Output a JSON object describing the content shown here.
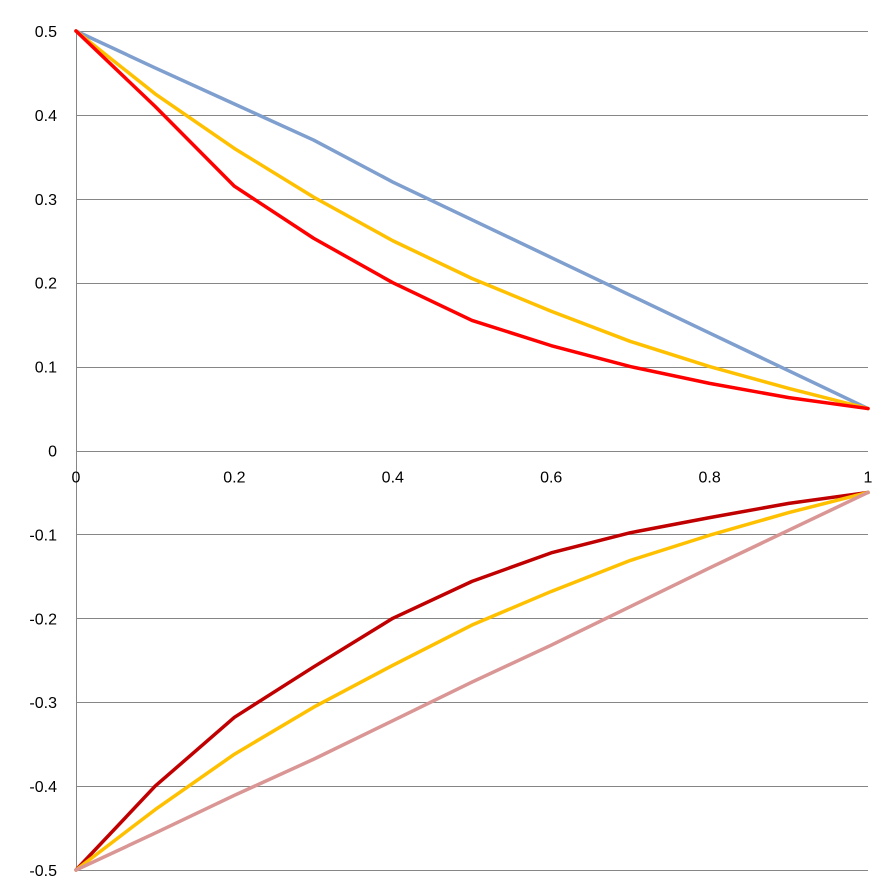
{
  "chart_data": {
    "type": "line",
    "title": "",
    "xlabel": "",
    "ylabel": "",
    "xlim": [
      0,
      1
    ],
    "ylim": [
      -0.5,
      0.5
    ],
    "grid": true,
    "legend": "none",
    "x_ticks": [
      0,
      0.2,
      0.4,
      0.6,
      0.8,
      1
    ],
    "x_tick_labels": [
      "0",
      "0.2",
      "0.4",
      "0.6",
      "0.8",
      "1"
    ],
    "y_ticks": [
      0.5,
      0.4,
      0.3,
      0.2,
      0.1,
      0,
      -0.1,
      -0.2,
      -0.3,
      -0.4,
      -0.5
    ],
    "y_tick_labels": [
      "0.5",
      "0.4",
      "0.3",
      "0.2",
      "0.1",
      "0",
      "-0.1",
      "-0.2",
      "-0.3",
      "-0.4",
      "-0.5"
    ],
    "x": [
      0,
      0.1,
      0.2,
      0.3,
      0.4,
      0.5,
      0.6,
      0.7,
      0.8,
      0.9,
      1.0
    ],
    "series": [
      {
        "color": "#7f9fcf",
        "values": [
          0.5,
          0.456,
          0.413,
          0.37,
          0.32,
          0.275,
          0.23,
          0.185,
          0.14,
          0.095,
          0.05
        ]
      },
      {
        "color": "#ffc000",
        "values": [
          0.5,
          0.425,
          0.36,
          0.302,
          0.25,
          0.205,
          0.166,
          0.13,
          0.1,
          0.074,
          0.05
        ]
      },
      {
        "color": "#ff0000",
        "values": [
          0.5,
          0.41,
          0.315,
          0.253,
          0.2,
          0.155,
          0.125,
          0.1,
          0.08,
          0.063,
          0.05
        ]
      },
      {
        "color": "#c00000",
        "values": [
          -0.5,
          -0.4,
          -0.318,
          -0.258,
          -0.2,
          -0.156,
          -0.122,
          -0.098,
          -0.08,
          -0.063,
          -0.05
        ]
      },
      {
        "color": "#ffc000",
        "values": [
          -0.5,
          -0.428,
          -0.362,
          -0.306,
          -0.256,
          -0.208,
          -0.168,
          -0.131,
          -0.101,
          -0.074,
          -0.05
        ]
      },
      {
        "color": "#d99694",
        "values": [
          -0.5,
          -0.456,
          -0.411,
          -0.368,
          -0.322,
          -0.276,
          -0.232,
          -0.186,
          -0.14,
          -0.095,
          -0.05
        ]
      }
    ]
  }
}
